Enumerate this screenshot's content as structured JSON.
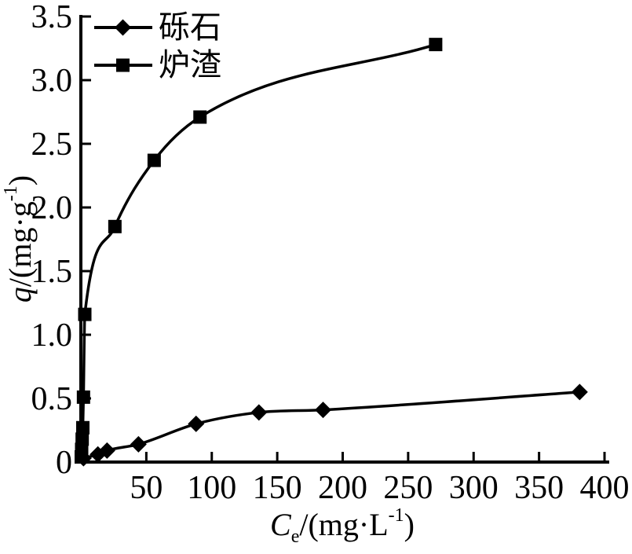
{
  "page": {
    "background_color": "#ffffff",
    "ink_color": "#000000"
  },
  "chart_data": {
    "type": "line",
    "title": "",
    "grid": false,
    "line_color": "#000000",
    "x_axis": {
      "label_text": "Ce/(mg·L-1)",
      "label_parts": {
        "variable": "C",
        "subscript": "e",
        "unit_prefix": "/(mg·L",
        "superscript": "-1",
        "unit_suffix": ")"
      },
      "range": [
        0,
        400
      ],
      "ticks": [
        50,
        100,
        150,
        200,
        250,
        300,
        350,
        400
      ],
      "origin_label": "0"
    },
    "y_axis": {
      "label_text": "q/(mg·g-1)",
      "label_parts": {
        "variable": "q",
        "unit_prefix": "/(mg·g",
        "superscript": "-1",
        "unit_suffix": ")"
      },
      "range": [
        0,
        3.5
      ],
      "ticks": [
        0,
        0.5,
        1.0,
        1.5,
        2.0,
        2.5,
        3.0,
        3.5
      ],
      "tick_labels": [
        "0",
        "0.5",
        "1.0",
        "1.5",
        "2.0",
        "2.5",
        "3.0",
        "3.5"
      ]
    },
    "legend": {
      "position": "top-left",
      "entries": [
        {
          "label": "砾石",
          "marker": "diamond"
        },
        {
          "label": "炉渣",
          "marker": "square"
        }
      ]
    },
    "series": [
      {
        "name": "砾石",
        "marker": "diamond",
        "color": "#000000",
        "points": [
          [
            2,
            0.03
          ],
          [
            13,
            0.06
          ],
          [
            20,
            0.09
          ],
          [
            44,
            0.14
          ],
          [
            88,
            0.3
          ],
          [
            136,
            0.39
          ],
          [
            185,
            0.41
          ],
          [
            381,
            0.55
          ]
        ]
      },
      {
        "name": "炉渣",
        "marker": "square",
        "color": "#000000",
        "points": [
          [
            0.3,
            0.04
          ],
          [
            0.6,
            0.1
          ],
          [
            1.0,
            0.18
          ],
          [
            1.5,
            0.27
          ],
          [
            2.0,
            0.51
          ],
          [
            3.0,
            1.16
          ],
          [
            26,
            1.85
          ],
          [
            56,
            2.37
          ],
          [
            91,
            2.71
          ],
          [
            271,
            3.28
          ]
        ]
      }
    ]
  }
}
